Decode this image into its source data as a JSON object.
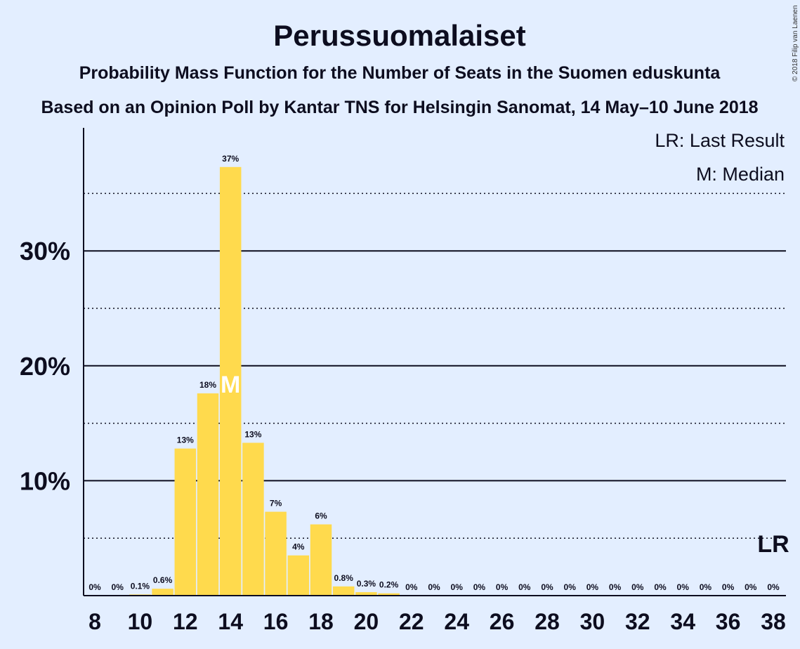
{
  "chart_data": {
    "type": "bar",
    "title": "Perussuomalaiset",
    "subtitle": "Probability Mass Function for the Number of Seats in the Suomen eduskunta",
    "subtitle2": "Based on an Opinion Poll by Kantar TNS for Helsingin Sanomat, 14 May–10 June 2018",
    "copyright": "© 2018 Filip van Laenen",
    "legend": {
      "lr": "LR: Last Result",
      "median": "M: Median"
    },
    "bar_color": "#ffda4d",
    "seats": [
      8,
      9,
      10,
      11,
      12,
      13,
      14,
      15,
      16,
      17,
      18,
      19,
      20,
      21,
      22,
      23,
      24,
      25,
      26,
      27,
      28,
      29,
      30,
      31,
      32,
      33,
      34,
      35,
      36,
      37,
      38
    ],
    "values": [
      0,
      0,
      0.1,
      0.6,
      12.8,
      17.6,
      37.3,
      13.3,
      7.3,
      3.5,
      6.2,
      0.8,
      0.3,
      0.2,
      0,
      0,
      0,
      0,
      0,
      0,
      0,
      0,
      0,
      0,
      0,
      0,
      0,
      0,
      0,
      0,
      0
    ],
    "labels": [
      "0%",
      "0%",
      "0.1%",
      "0.6%",
      "13%",
      "18%",
      "37%",
      "13%",
      "7%",
      "4%",
      "6%",
      "0.8%",
      "0.3%",
      "0.2%",
      "0%",
      "0%",
      "0%",
      "0%",
      "0%",
      "0%",
      "0%",
      "0%",
      "0%",
      "0%",
      "0%",
      "0%",
      "0%",
      "0%",
      "0%",
      "0%",
      "0%"
    ],
    "x_ticks": [
      8,
      10,
      12,
      14,
      16,
      18,
      20,
      22,
      24,
      26,
      28,
      30,
      32,
      34,
      36,
      38
    ],
    "y_major_ticks": [
      10,
      20,
      30
    ],
    "y_major_labels": [
      "10%",
      "20%",
      "30%"
    ],
    "y_minor_ticks": [
      5,
      15,
      25,
      35
    ],
    "ylim": [
      0,
      40
    ],
    "median_seat": 14,
    "median_marker": "M",
    "last_result_seat": 38,
    "last_result_marker": "LR"
  }
}
